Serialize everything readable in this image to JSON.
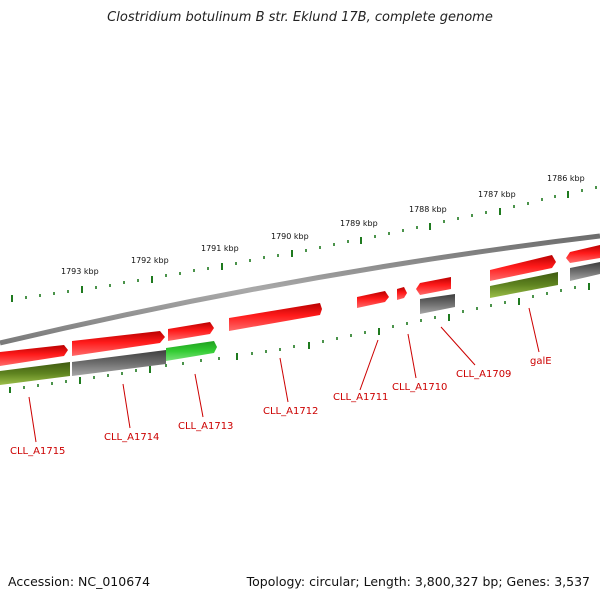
{
  "title": "Clostridium botulinum B str. Eklund 17B, complete genome",
  "accession": "Accession: NC_010674",
  "summary": "Topology: circular; Length: 3,800,327 bp; Genes: 3,537",
  "colors": {
    "backbone": "#8a8a8a",
    "tick": "#1f7a1f",
    "gene_red": "#ee0000",
    "gene_gray": "#666666",
    "gene_olive": "#5a7a1a",
    "gene_green": "#33cc33",
    "label": "#cc0000"
  },
  "scale_labels": [
    "1786 kbp",
    "1787 kbp",
    "1788 kbp",
    "1789 kbp",
    "1790 kbp",
    "1791 kbp",
    "1792 kbp",
    "1793 kbp"
  ],
  "gene_labels": [
    "galE",
    "CLL_A1709",
    "CLL_A1710",
    "CLL_A1711",
    "CLL_A1712",
    "CLL_A1713",
    "CLL_A1714",
    "CLL_A1715"
  ]
}
